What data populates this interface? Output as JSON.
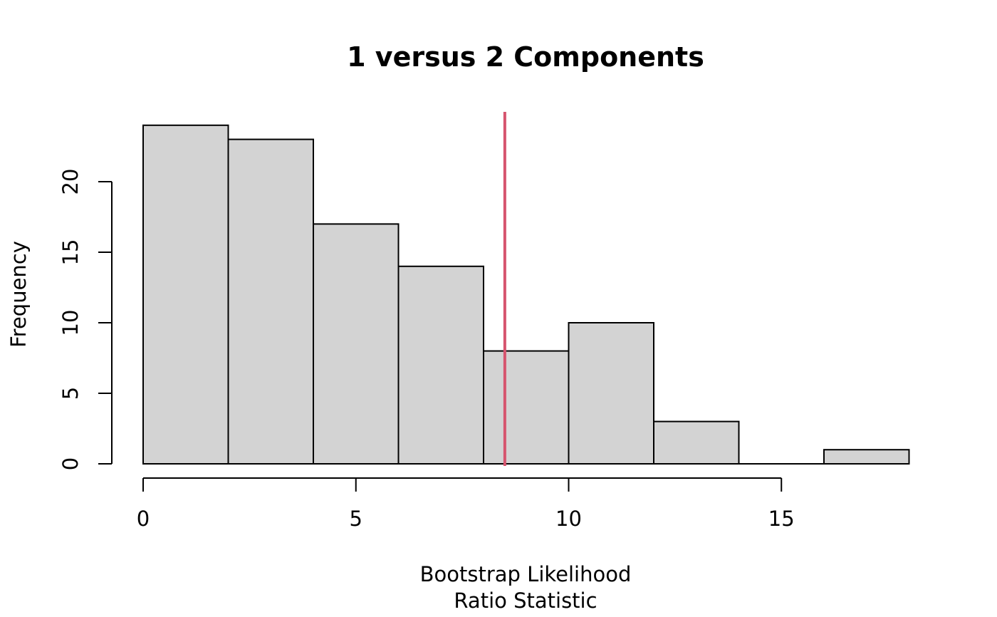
{
  "chart_data": {
    "type": "histogram",
    "title": "1 versus 2 Components",
    "xlabel_lines": [
      "Bootstrap Likelihood",
      "Ratio Statistic"
    ],
    "ylabel": "Frequency",
    "bins": [
      {
        "start": 0,
        "end": 2,
        "count": 24
      },
      {
        "start": 2,
        "end": 4,
        "count": 23
      },
      {
        "start": 4,
        "end": 6,
        "count": 17
      },
      {
        "start": 6,
        "end": 8,
        "count": 14
      },
      {
        "start": 8,
        "end": 10,
        "count": 8
      },
      {
        "start": 10,
        "end": 12,
        "count": 10
      },
      {
        "start": 12,
        "end": 14,
        "count": 3
      },
      {
        "start": 14,
        "end": 16,
        "count": 0
      },
      {
        "start": 16,
        "end": 18,
        "count": 1
      }
    ],
    "xlim": [
      0,
      18
    ],
    "ylim": [
      0,
      25
    ],
    "x_ticks": [
      0,
      5,
      10,
      15
    ],
    "y_ticks": [
      0,
      5,
      10,
      15,
      20
    ],
    "reference_line": {
      "x": 8.5,
      "color": "#d6546e"
    },
    "bar_color": "#d3d3d3",
    "grid": false,
    "legend": "none"
  }
}
